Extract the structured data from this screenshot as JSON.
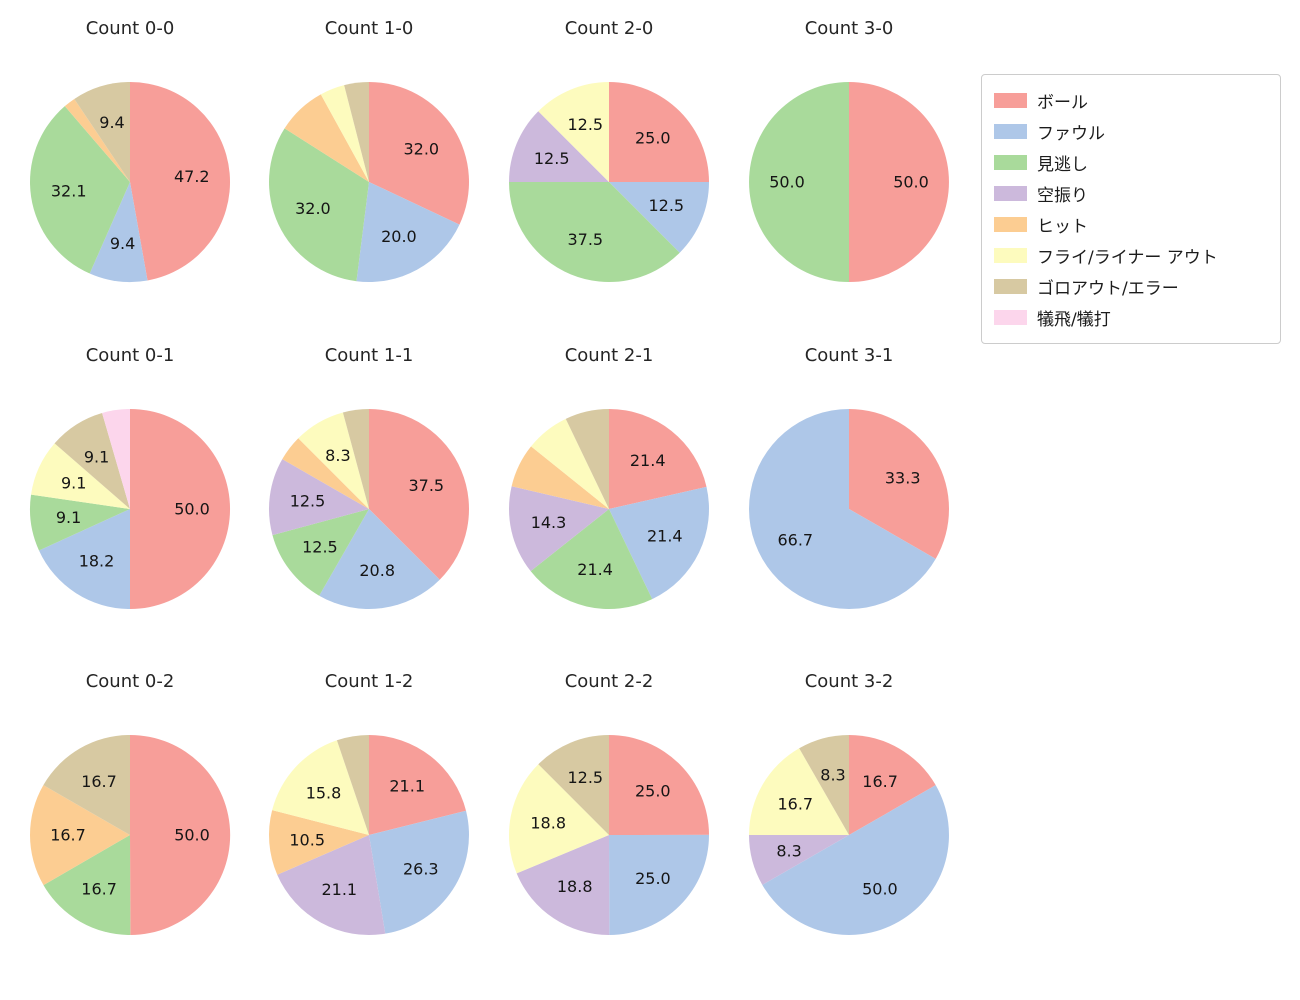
{
  "colors": {
    "ボール": "#f79e99",
    "ファウル": "#aec7e8",
    "見逃し": "#a9da9b",
    "空振り": "#ccb9dc",
    "ヒット": "#fccd92",
    "フライ/ライナー アウト": "#fdfbbe",
    "ゴロアウト/エラー": "#d7c9a2",
    "犠飛/犠打": "#fcd6ec"
  },
  "legend": {
    "items": [
      {
        "label": "ボール"
      },
      {
        "label": "ファウル"
      },
      {
        "label": "見逃し"
      },
      {
        "label": "空振り"
      },
      {
        "label": "ヒット"
      },
      {
        "label": "フライ/ライナー アウト"
      },
      {
        "label": "ゴロアウト/エラー"
      },
      {
        "label": "犠飛/犠打"
      }
    ]
  },
  "chart_data": [
    {
      "type": "pie",
      "title": "Count 0-0",
      "start_angle_deg": 90,
      "direction": "clockwise",
      "slices": [
        {
          "category": "ボール",
          "value": 47.2,
          "label": "47.2"
        },
        {
          "category": "ファウル",
          "value": 9.4,
          "label": "9.4"
        },
        {
          "category": "見逃し",
          "value": 32.1,
          "label": "32.1"
        },
        {
          "category": "ヒット",
          "value": 1.9,
          "label": ""
        },
        {
          "category": "ゴロアウト/エラー",
          "value": 9.4,
          "label": "9.4"
        }
      ]
    },
    {
      "type": "pie",
      "title": "Count 1-0",
      "start_angle_deg": 90,
      "direction": "clockwise",
      "slices": [
        {
          "category": "ボール",
          "value": 32.0,
          "label": "32.0"
        },
        {
          "category": "ファウル",
          "value": 20.0,
          "label": "20.0"
        },
        {
          "category": "見逃し",
          "value": 32.0,
          "label": "32.0"
        },
        {
          "category": "ヒット",
          "value": 8.0,
          "label": ""
        },
        {
          "category": "フライ/ライナー アウト",
          "value": 4.0,
          "label": ""
        },
        {
          "category": "ゴロアウト/エラー",
          "value": 4.0,
          "label": ""
        }
      ]
    },
    {
      "type": "pie",
      "title": "Count 2-0",
      "start_angle_deg": 90,
      "direction": "clockwise",
      "slices": [
        {
          "category": "ボール",
          "value": 25.0,
          "label": "25.0"
        },
        {
          "category": "ファウル",
          "value": 12.5,
          "label": "12.5"
        },
        {
          "category": "見逃し",
          "value": 37.5,
          "label": "37.5"
        },
        {
          "category": "空振り",
          "value": 12.5,
          "label": "12.5"
        },
        {
          "category": "フライ/ライナー アウト",
          "value": 12.5,
          "label": "12.5"
        }
      ]
    },
    {
      "type": "pie",
      "title": "Count 3-0",
      "start_angle_deg": 90,
      "direction": "clockwise",
      "slices": [
        {
          "category": "ボール",
          "value": 50.0,
          "label": "50.0"
        },
        {
          "category": "見逃し",
          "value": 50.0,
          "label": "50.0"
        }
      ]
    },
    {
      "type": "pie",
      "title": "Count 0-1",
      "start_angle_deg": 90,
      "direction": "clockwise",
      "slices": [
        {
          "category": "ボール",
          "value": 50.0,
          "label": "50.0"
        },
        {
          "category": "ファウル",
          "value": 18.2,
          "label": "18.2"
        },
        {
          "category": "見逃し",
          "value": 9.1,
          "label": "9.1"
        },
        {
          "category": "フライ/ライナー アウト",
          "value": 9.1,
          "label": "9.1"
        },
        {
          "category": "ゴロアウト/エラー",
          "value": 9.1,
          "label": "9.1"
        },
        {
          "category": "犠飛/犠打",
          "value": 4.5,
          "label": ""
        }
      ]
    },
    {
      "type": "pie",
      "title": "Count 1-1",
      "start_angle_deg": 90,
      "direction": "clockwise",
      "slices": [
        {
          "category": "ボール",
          "value": 37.5,
          "label": "37.5"
        },
        {
          "category": "ファウル",
          "value": 20.8,
          "label": "20.8"
        },
        {
          "category": "見逃し",
          "value": 12.5,
          "label": "12.5"
        },
        {
          "category": "空振り",
          "value": 12.5,
          "label": "12.5"
        },
        {
          "category": "ヒット",
          "value": 4.2,
          "label": ""
        },
        {
          "category": "フライ/ライナー アウト",
          "value": 8.3,
          "label": "8.3"
        },
        {
          "category": "ゴロアウト/エラー",
          "value": 4.2,
          "label": ""
        }
      ]
    },
    {
      "type": "pie",
      "title": "Count 2-1",
      "start_angle_deg": 90,
      "direction": "clockwise",
      "slices": [
        {
          "category": "ボール",
          "value": 21.4,
          "label": "21.4"
        },
        {
          "category": "ファウル",
          "value": 21.4,
          "label": "21.4"
        },
        {
          "category": "見逃し",
          "value": 21.4,
          "label": "21.4"
        },
        {
          "category": "空振り",
          "value": 14.3,
          "label": "14.3"
        },
        {
          "category": "ヒット",
          "value": 7.1,
          "label": ""
        },
        {
          "category": "フライ/ライナー アウト",
          "value": 7.1,
          "label": ""
        },
        {
          "category": "ゴロアウト/エラー",
          "value": 7.1,
          "label": ""
        }
      ]
    },
    {
      "type": "pie",
      "title": "Count 3-1",
      "start_angle_deg": 90,
      "direction": "clockwise",
      "slices": [
        {
          "category": "ボール",
          "value": 33.3,
          "label": "33.3"
        },
        {
          "category": "ファウル",
          "value": 66.7,
          "label": "66.7"
        }
      ]
    },
    {
      "type": "pie",
      "title": "Count 0-2",
      "start_angle_deg": 90,
      "direction": "clockwise",
      "slices": [
        {
          "category": "ボール",
          "value": 50.0,
          "label": "50.0"
        },
        {
          "category": "見逃し",
          "value": 16.7,
          "label": "16.7"
        },
        {
          "category": "ヒット",
          "value": 16.7,
          "label": "16.7"
        },
        {
          "category": "ゴロアウト/エラー",
          "value": 16.7,
          "label": "16.7"
        }
      ]
    },
    {
      "type": "pie",
      "title": "Count 1-2",
      "start_angle_deg": 90,
      "direction": "clockwise",
      "slices": [
        {
          "category": "ボール",
          "value": 21.1,
          "label": "21.1"
        },
        {
          "category": "ファウル",
          "value": 26.3,
          "label": "26.3"
        },
        {
          "category": "空振り",
          "value": 21.1,
          "label": "21.1"
        },
        {
          "category": "ヒット",
          "value": 10.5,
          "label": "10.5"
        },
        {
          "category": "フライ/ライナー アウト",
          "value": 15.8,
          "label": "15.8"
        },
        {
          "category": "ゴロアウト/エラー",
          "value": 5.2,
          "label": ""
        }
      ]
    },
    {
      "type": "pie",
      "title": "Count 2-2",
      "start_angle_deg": 90,
      "direction": "clockwise",
      "slices": [
        {
          "category": "ボール",
          "value": 25.0,
          "label": "25.0"
        },
        {
          "category": "ファウル",
          "value": 25.0,
          "label": "25.0"
        },
        {
          "category": "空振り",
          "value": 18.8,
          "label": "18.8"
        },
        {
          "category": "フライ/ライナー アウト",
          "value": 18.8,
          "label": "18.8"
        },
        {
          "category": "ゴロアウト/エラー",
          "value": 12.5,
          "label": "12.5"
        }
      ]
    },
    {
      "type": "pie",
      "title": "Count 3-2",
      "start_angle_deg": 90,
      "direction": "clockwise",
      "slices": [
        {
          "category": "ボール",
          "value": 16.7,
          "label": "16.7"
        },
        {
          "category": "ファウル",
          "value": 50.0,
          "label": "50.0"
        },
        {
          "category": "空振り",
          "value": 8.3,
          "label": "8.3"
        },
        {
          "category": "フライ/ライナー アウト",
          "value": 16.7,
          "label": "16.7"
        },
        {
          "category": "ゴロアウト/エラー",
          "value": 8.3,
          "label": "8.3"
        }
      ]
    }
  ]
}
